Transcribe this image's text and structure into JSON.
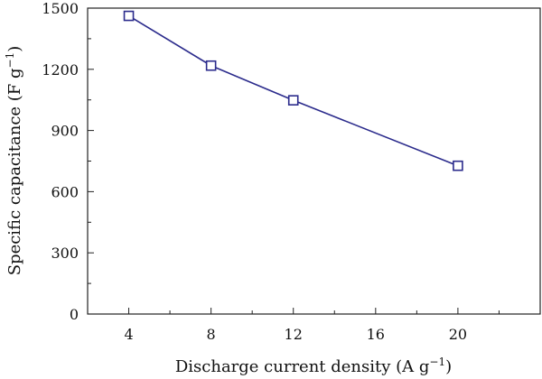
{
  "chart_data": {
    "type": "line",
    "x": [
      4,
      8,
      12,
      20
    ],
    "series": [
      {
        "values": [
          1462,
          1218,
          1048,
          727
        ]
      }
    ],
    "xlabel": "Discharge current density (A g",
    "xlabel_sup": "−1",
    "xlabel_suffix": ")",
    "ylabel": "Specific capacitance (F g",
    "ylabel_sup": "−1",
    "ylabel_suffix": ")",
    "xlim": [
      2,
      24
    ],
    "ylim": [
      0,
      1500
    ],
    "xticks": [
      4,
      8,
      12,
      16,
      20
    ],
    "yticks": [
      0,
      300,
      600,
      900,
      1200,
      1500
    ],
    "xtick_labels": [
      "4",
      "8",
      "12",
      "16",
      "20"
    ],
    "ytick_labels": [
      "0",
      "300",
      "600",
      "900",
      "1200",
      "1500"
    ],
    "grid": false,
    "marker": "open-square",
    "line_color": "#2b2b8c"
  }
}
